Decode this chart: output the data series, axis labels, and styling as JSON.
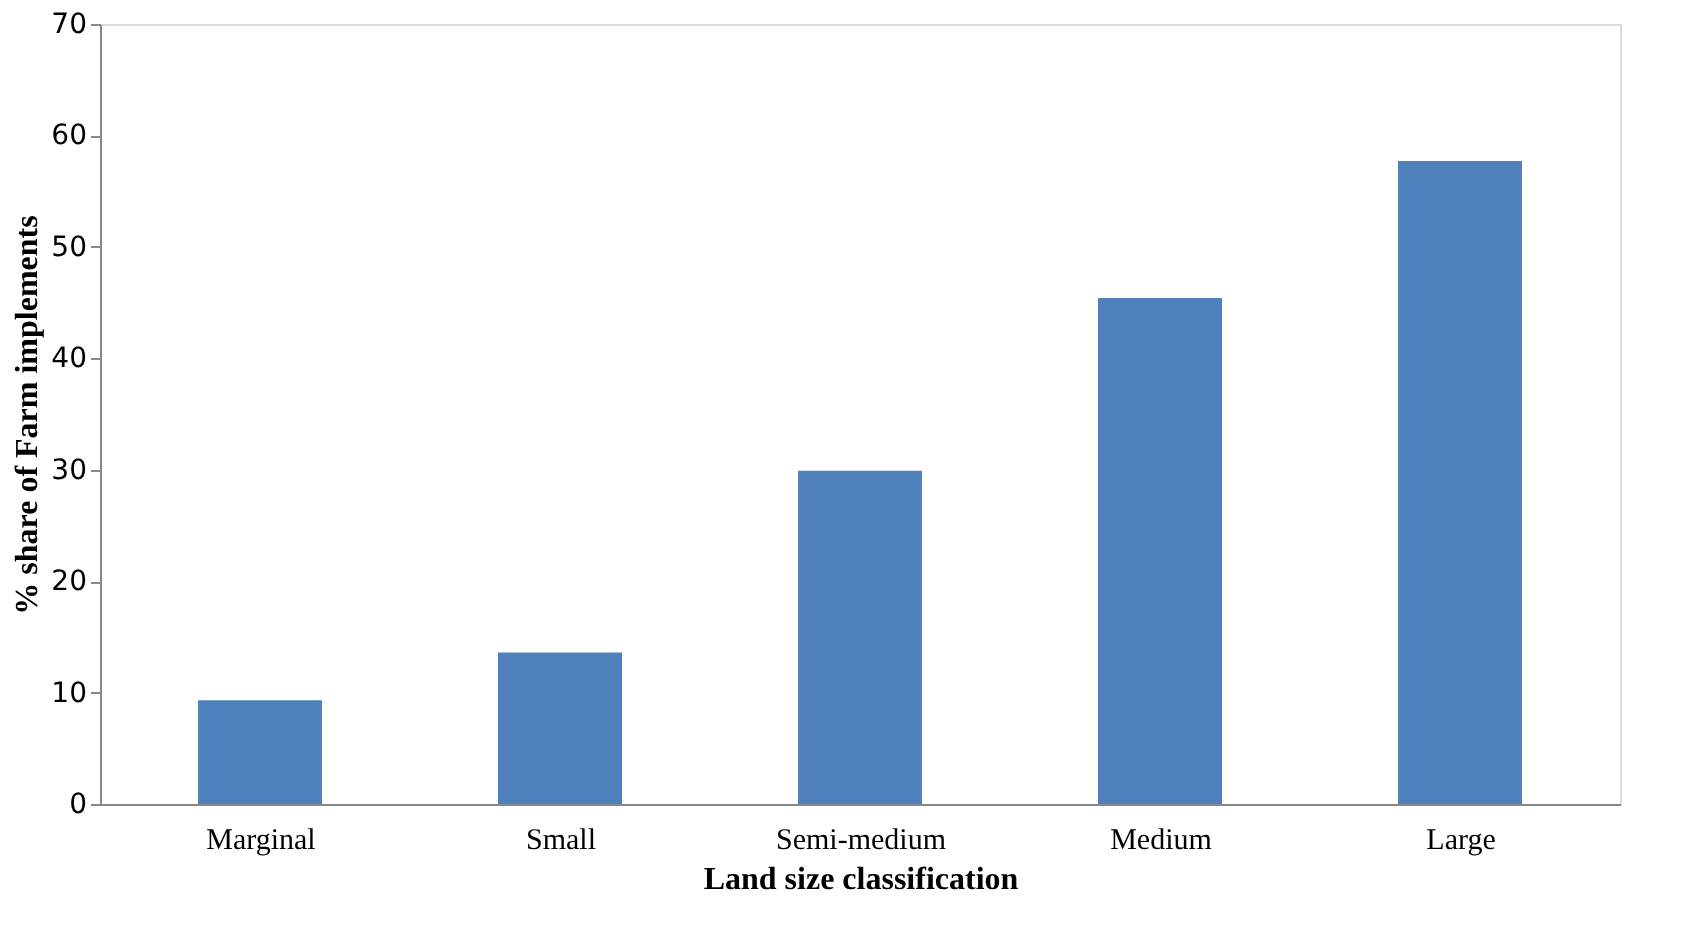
{
  "chart_data": {
    "type": "bar",
    "xlabel": "Land size classification",
    "ylabel": "% share of Farm implements",
    "categories": [
      "Marginal",
      "Small",
      "Semi-medium",
      "Medium",
      "Large"
    ],
    "values": [
      9.3,
      13.6,
      29.9,
      45.4,
      57.7
    ],
    "color": "#4f81bd",
    "ylim": [
      0,
      70
    ],
    "yticks": [
      0,
      10,
      20,
      30,
      40,
      50,
      60,
      70
    ],
    "grid": false
  }
}
